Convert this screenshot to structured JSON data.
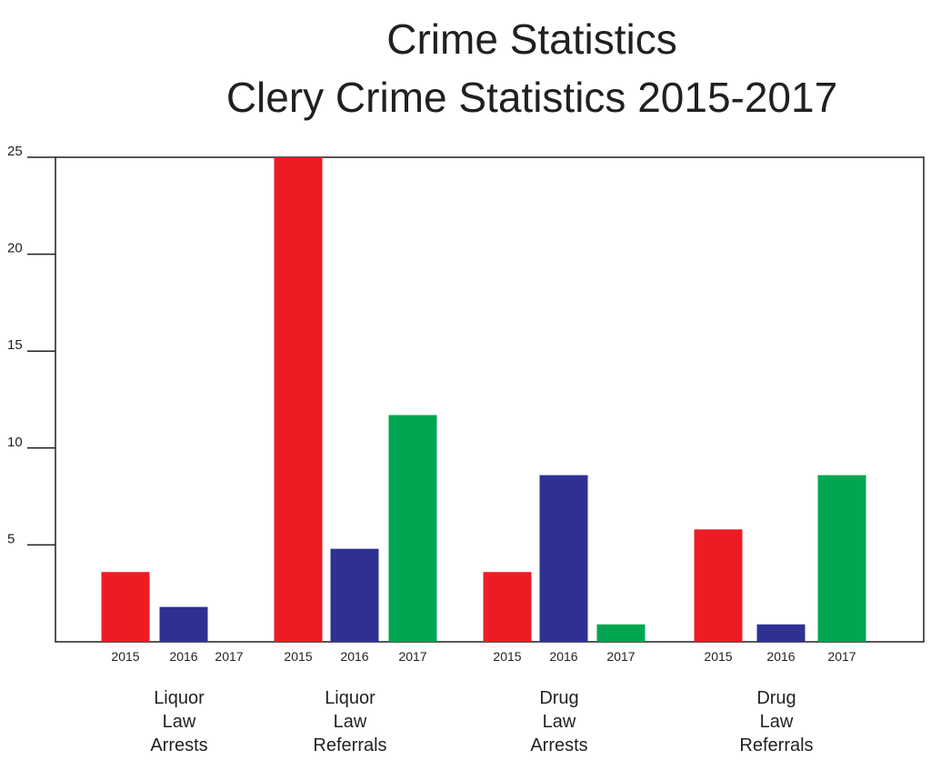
{
  "chart_data": {
    "type": "bar",
    "title": "Crime Statistics",
    "subtitle": "Clery Crime Statistics 2015-2017",
    "xlabel": "",
    "ylabel": "",
    "ylim": [
      0,
      25
    ],
    "yticks": [
      5,
      10,
      15,
      20,
      25
    ],
    "grid": false,
    "legend": "none",
    "groups": [
      {
        "label": [
          "Liquor",
          "Law",
          "Arrests"
        ],
        "years": [
          "2015",
          "2016",
          "2017"
        ],
        "values": [
          3.6,
          1.8,
          0
        ]
      },
      {
        "label": [
          "Liquor",
          "Law",
          "Referrals"
        ],
        "years": [
          "2015",
          "2016",
          "2017"
        ],
        "values": [
          25,
          4.8,
          11.7
        ]
      },
      {
        "label": [
          "Drug",
          "Law",
          "Arrests"
        ],
        "years": [
          "2015",
          "2016",
          "2017"
        ],
        "values": [
          3.6,
          8.6,
          0.9
        ]
      },
      {
        "label": [
          "Drug",
          "Law",
          "Referrals"
        ],
        "years": [
          "2015",
          "2016",
          "2017"
        ],
        "values": [
          5.8,
          0.9,
          8.6
        ]
      }
    ],
    "colors": {
      "2015": "#ed1c24",
      "2016": "#2e3192",
      "2017": "#00a651"
    }
  }
}
